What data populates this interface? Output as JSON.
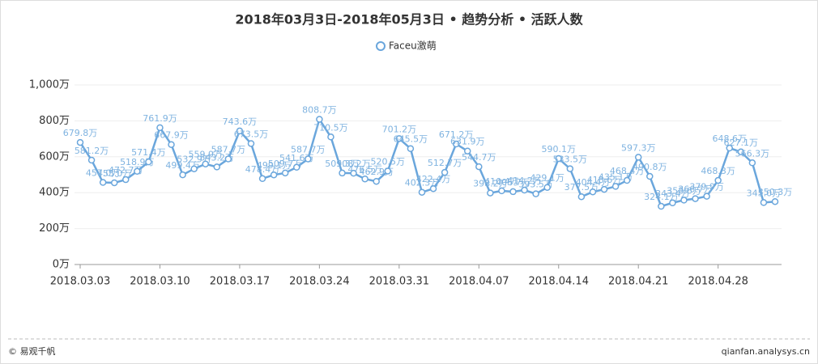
{
  "chart_data": {
    "type": "line",
    "title": "2018年03月3日-2018年05月3日 • 趋势分析 • 活跃人数",
    "categories": [
      "2018.03.03",
      null,
      null,
      null,
      null,
      null,
      null,
      "2018.03.10",
      null,
      null,
      null,
      null,
      null,
      null,
      "2018.03.17",
      null,
      null,
      null,
      null,
      null,
      null,
      "2018.03.24",
      null,
      null,
      null,
      null,
      null,
      null,
      "2018.03.31",
      null,
      null,
      null,
      null,
      null,
      null,
      "2018.04.07",
      null,
      null,
      null,
      null,
      null,
      null,
      "2018.04.14",
      null,
      null,
      null,
      null,
      null,
      null,
      "2018.04.21",
      null,
      null,
      null,
      null,
      null,
      null,
      "2018.04.28",
      null,
      null,
      null,
      null,
      null
    ],
    "series": [
      {
        "name": "Faceu激萌",
        "color": "#6aa6dc",
        "values": [
          679.8,
          581.2,
          457.0,
          455.0,
          472.7,
          518.9,
          571.4,
          761.9,
          667.9,
          499.4,
          532.9,
          559.9,
          543.2,
          587.7,
          743.6,
          673.5,
          478.4,
          499.1,
          509.7,
          541.6,
          587.7,
          808.7,
          710.5,
          509.3,
          508.2,
          476.5,
          462.9,
          520.5,
          701.2,
          645.5,
          402.3,
          422.4,
          512.7,
          671.2,
          631.9,
          544.7,
          398.2,
          410.4,
          405.7,
          414.2,
          393.5,
          429.1,
          590.1,
          533.5,
          377.5,
          404.4,
          418.6,
          435.1,
          468.4,
          597.3,
          490.8,
          324.1,
          343.4,
          358.6,
          366.7,
          379.9,
          468.3,
          648.6,
          627.1,
          566.3,
          345.0,
          350.3
        ],
        "value_labels": [
          "679.8万",
          "581.2万",
          "457.0万",
          "455.0万",
          "472.7万",
          "518.9万",
          "571.4万",
          "761.9万",
          "667.9万",
          "499.4万",
          "532.9万",
          "559.9万",
          "543.2万",
          "587.7万",
          "743.6万",
          "673.5万",
          "478.4万",
          "499.1万",
          "509.7万",
          "541.6万",
          "587.7万",
          "808.7万",
          "710.5万",
          "509.3万",
          "508.2万",
          "476.5万",
          "462.9万",
          "520.5万",
          "701.2万",
          "645.5万",
          "402.3万",
          "422.4万",
          "512.7万",
          "671.2万",
          "631.9万",
          "544.7万",
          "398.2万",
          "410.4万",
          "405.7万",
          "414.2万",
          "393.5万",
          "429.1万",
          "590.1万",
          "533.5万",
          "377.5万",
          "404.4万",
          "418.6万",
          "435.1万",
          "468.4万",
          "597.3万",
          "490.8万",
          "324.1万",
          "343.4万",
          "358.6万",
          "366.7万",
          "379.9万",
          "468.3万",
          "648.6万",
          "627.1万",
          "566.3万",
          "345.0万",
          "350.3万"
        ]
      }
    ],
    "ylim": [
      0,
      1000
    ],
    "yticks": [
      {
        "value": 0,
        "label": "0万"
      },
      {
        "value": 200,
        "label": "200万"
      },
      {
        "value": 400,
        "label": "400万"
      },
      {
        "value": 600,
        "label": "600万"
      },
      {
        "value": 800,
        "label": "800万"
      },
      {
        "value": 1000,
        "label": "1,000万"
      }
    ],
    "grid": true,
    "legend": "top"
  },
  "footer": {
    "left": "© 易观千帆",
    "right": "qianfan.analysys.cn"
  }
}
